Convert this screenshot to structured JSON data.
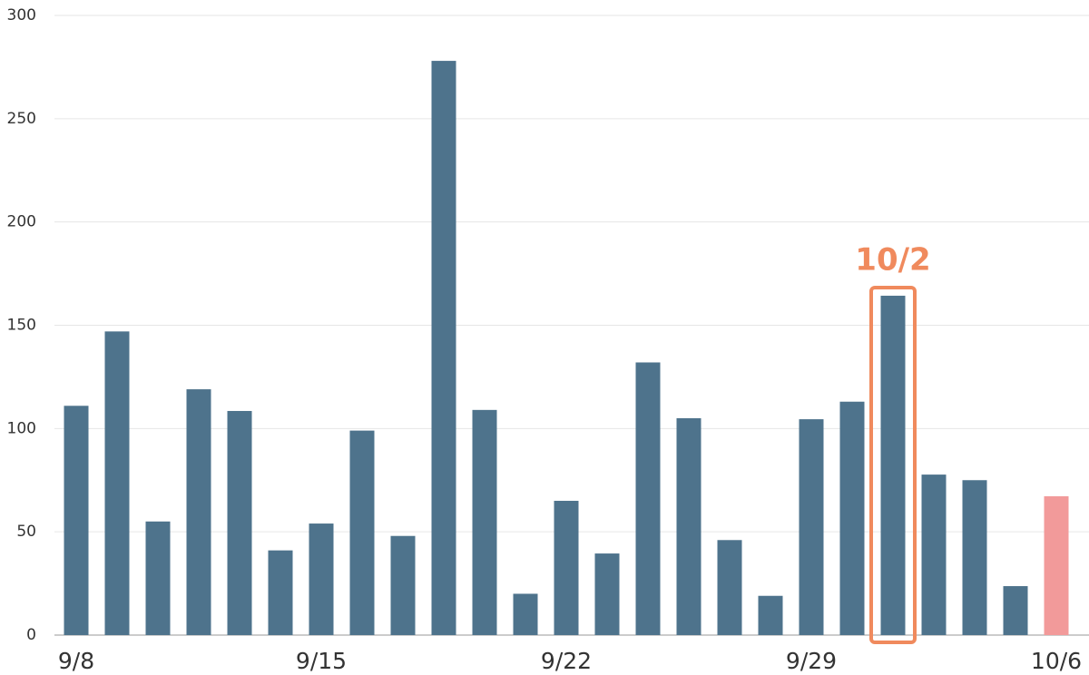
{
  "chart_data": {
    "type": "bar",
    "categories": [
      "9/8",
      null,
      null,
      null,
      null,
      null,
      "9/15",
      null,
      null,
      null,
      null,
      null,
      "9/22",
      null,
      null,
      null,
      null,
      null,
      "9/29",
      null,
      null,
      null,
      null,
      null,
      "10/6"
    ],
    "values": [
      111,
      147,
      55,
      119,
      108.5,
      41,
      54,
      99,
      48,
      278,
      109,
      20,
      65,
      39.5,
      132,
      105,
      46,
      19,
      104.5,
      113,
      164.3,
      77.7,
      75,
      23.7,
      67.2
    ],
    "colors": [
      "#4e738c",
      "#4e738c",
      "#4e738c",
      "#4e738c",
      "#4e738c",
      "#4e738c",
      "#4e738c",
      "#4e738c",
      "#4e738c",
      "#4e738c",
      "#4e738c",
      "#4e738c",
      "#4e738c",
      "#4e738c",
      "#4e738c",
      "#4e738c",
      "#4e738c",
      "#4e738c",
      "#4e738c",
      "#4e738c",
      "#4e738c",
      "#4e738c",
      "#4e738c",
      "#4e738c",
      "#f29a9a"
    ],
    "ylim": [
      0,
      300
    ],
    "yticks": [
      0,
      50,
      100,
      150,
      200,
      250,
      300
    ],
    "grid": true,
    "highlight": {
      "label": "10/2",
      "index": 20,
      "color": "#f08a5d"
    }
  }
}
